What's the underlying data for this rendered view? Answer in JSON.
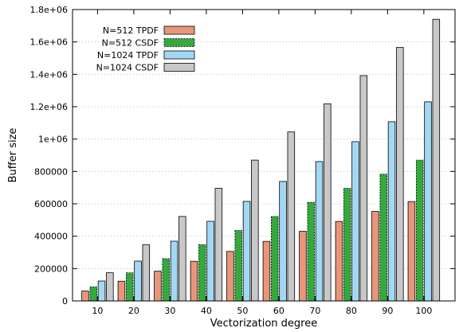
{
  "chart_data": {
    "type": "bar",
    "title": "",
    "xlabel": "Vectorization degree",
    "ylabel": "Buffer size",
    "categories": [
      "10",
      "20",
      "30",
      "40",
      "50",
      "60",
      "70",
      "80",
      "90",
      "100"
    ],
    "ylim": [
      0,
      1800000
    ],
    "yticks": [
      0,
      200000,
      400000,
      600000,
      800000,
      1000000,
      1200000,
      1400000,
      1600000,
      1800000
    ],
    "ytick_labels": [
      "0",
      "200000",
      "400000",
      "600000",
      "800000",
      "1e+06",
      "1.2e+06",
      "1.4e+06",
      "1.6e+06",
      "1.8e+06"
    ],
    "grid": true,
    "legend_position": "top-left",
    "series": [
      {
        "name": "N=512 TPDF",
        "color": "#e8967a",
        "pattern": "solid",
        "values": [
          61000,
          122000,
          184000,
          245000,
          306000,
          368000,
          430000,
          491000,
          553000,
          614000
        ]
      },
      {
        "name": "N=512 CSDF",
        "color": "#35a83e",
        "pattern": "dashed",
        "values": [
          87000,
          174000,
          261000,
          348000,
          435000,
          522000,
          609000,
          696000,
          783000,
          870000
        ]
      },
      {
        "name": "N=1024 TPDF",
        "color": "#a3d8f4",
        "pattern": "solid",
        "values": [
          123000,
          246000,
          369000,
          492000,
          615000,
          738000,
          861000,
          984000,
          1107000,
          1230000
        ]
      },
      {
        "name": "N=1024 CSDF",
        "color": "#c8c8c8",
        "pattern": "solid",
        "values": [
          174000,
          348000,
          522000,
          696000,
          870000,
          1044000,
          1218000,
          1392000,
          1566000,
          1740000
        ]
      }
    ]
  }
}
